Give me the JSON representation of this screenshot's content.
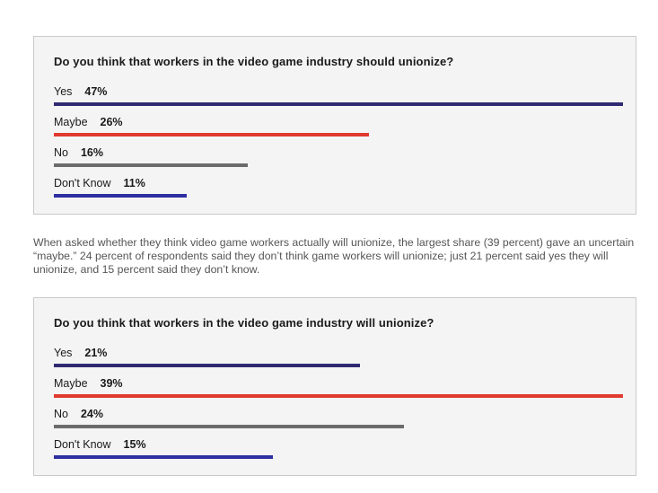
{
  "paragraph": "When asked whether they think video game workers actually will unionize, the largest share (39 percent) gave an uncertain “maybe.” 24 percent of respondents said they don’t think game workers will unionize; just 21 percent said yes they will unionize, and 15 percent said they don’t know.",
  "chart_data": [
    {
      "type": "bar",
      "title": "Do you think that workers in the video game industry should unionize?",
      "categories": [
        "Yes",
        "Maybe",
        "No",
        "Don't Know"
      ],
      "values": [
        47,
        26,
        16,
        11
      ],
      "value_labels": [
        "47%",
        "26%",
        "16%",
        "11%"
      ],
      "colors": [
        "#2e2a72",
        "#e03a2e",
        "#6b6b6b",
        "#2e2fa0"
      ],
      "xlim": [
        0,
        47
      ]
    },
    {
      "type": "bar",
      "title": "Do you think that workers in the video game industry will unionize?",
      "categories": [
        "Yes",
        "Maybe",
        "No",
        "Don't Know"
      ],
      "values": [
        21,
        39,
        24,
        15
      ],
      "value_labels": [
        "21%",
        "39%",
        "24%",
        "15%"
      ],
      "colors": [
        "#2e2a72",
        "#e03a2e",
        "#6b6b6b",
        "#2e2fa0"
      ],
      "xlim": [
        0,
        39
      ]
    }
  ]
}
